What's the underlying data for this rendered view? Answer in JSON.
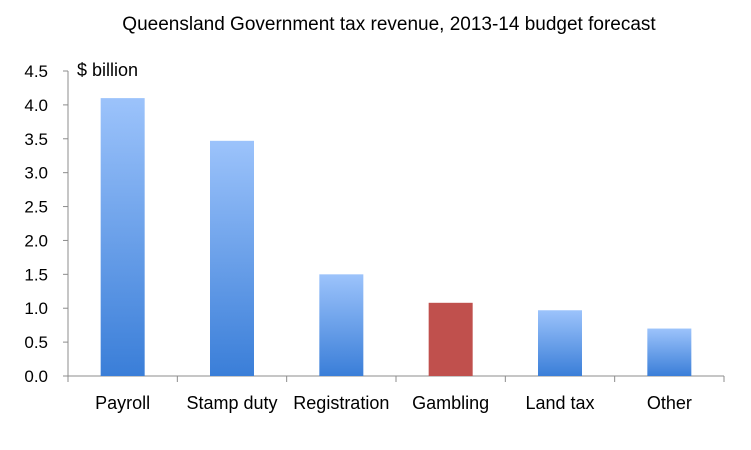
{
  "chart_data": {
    "type": "bar",
    "title": "Queensland Government tax revenue, 2013-14 budget forecast",
    "ylabel": "$ billion",
    "xlabel": "",
    "categories": [
      "Payroll",
      "Stamp duty",
      "Registration",
      "Gambling",
      "Land tax",
      "Other"
    ],
    "values": [
      4.1,
      3.47,
      1.5,
      1.08,
      0.97,
      0.7
    ],
    "highlight": [
      false,
      false,
      false,
      true,
      false,
      false
    ],
    "ylim": [
      0,
      4.5
    ],
    "yticks": [
      "0.0",
      "0.5",
      "1.0",
      "1.5",
      "2.0",
      "2.5",
      "3.0",
      "3.5",
      "4.0",
      "4.5"
    ],
    "grid": false,
    "legend": "none",
    "colors": {
      "bar_top": "#9cc3fb",
      "bar_bottom": "#3a7ed8",
      "highlight": "#c0504d"
    }
  }
}
